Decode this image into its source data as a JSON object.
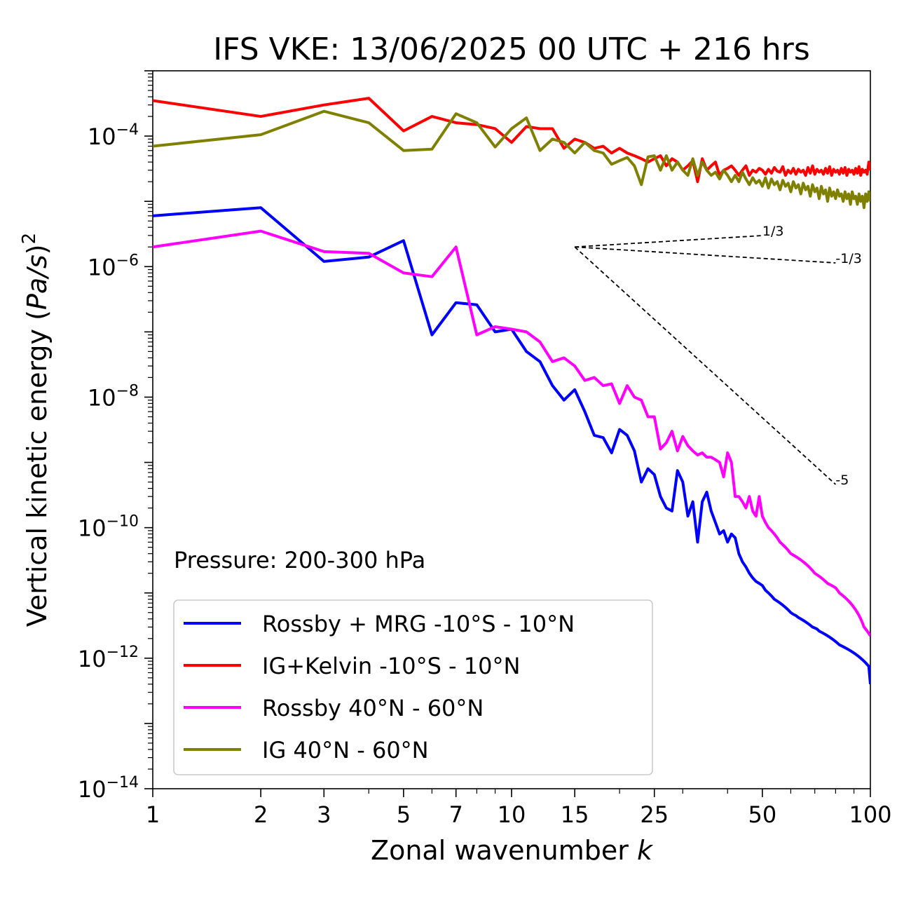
{
  "chart_data": {
    "type": "line",
    "title": "IFS VKE: 13/06/2025 00 UTC + 216 hrs",
    "xlabel_main": "Zonal wavenumber ",
    "xlabel_var": "k",
    "ylabel_main": "Vertical kinetic energy (",
    "ylabel_var": "Pa/s",
    "ylabel_close": ")",
    "ylabel_sup": "2",
    "x_scale": "log",
    "y_scale": "log",
    "xlim": [
      1,
      100
    ],
    "ylim": [
      1e-14,
      0.001
    ],
    "x_ticks": [
      {
        "value": 1,
        "label": "1"
      },
      {
        "value": 2,
        "label": "2"
      },
      {
        "value": 3,
        "label": "3"
      },
      {
        "value": 5,
        "label": "5"
      },
      {
        "value": 7,
        "label": "7"
      },
      {
        "value": 10,
        "label": "10"
      },
      {
        "value": 15,
        "label": "15"
      },
      {
        "value": 25,
        "label": "25"
      },
      {
        "value": 50,
        "label": "50"
      },
      {
        "value": 100,
        "label": "100"
      }
    ],
    "y_ticks": [
      {
        "value": 1e-14,
        "base": "10",
        "exp": "−14"
      },
      {
        "value": 1e-12,
        "base": "10",
        "exp": "−12"
      },
      {
        "value": 1e-10,
        "base": "10",
        "exp": "−10"
      },
      {
        "value": 1e-08,
        "base": "10",
        "exp": "−8"
      },
      {
        "value": 1e-06,
        "base": "10",
        "exp": "−6"
      },
      {
        "value": 0.0001,
        "base": "10",
        "exp": "−4"
      }
    ],
    "grid": false,
    "legend_position": "lower-left",
    "annotation": "Pressure: 200-300 hPa",
    "reference_slopes": [
      {
        "label": "1/3",
        "x0": 15,
        "y0": 2e-06,
        "x1": 50,
        "y1": 2.99e-06
      },
      {
        "label": "-1/3",
        "x0": 15,
        "y0": 2e-06,
        "x1": 80,
        "y1": 1.14e-06
      },
      {
        "label": "-5",
        "x0": 15,
        "y0": 2e-06,
        "x1": 80,
        "y1": 4.6e-10
      }
    ],
    "series": [
      {
        "name": "Rossby + MRG -10°S - 10°N",
        "color": "#0000ff",
        "x": [
          1,
          2,
          3,
          4,
          5,
          6,
          7,
          8,
          9,
          10,
          11,
          12,
          13,
          14,
          15,
          16,
          17,
          18,
          19,
          20,
          21,
          22,
          23,
          24,
          25,
          26,
          27,
          28,
          29,
          30,
          31,
          32,
          33,
          34,
          35,
          36,
          37,
          38,
          39,
          40,
          41,
          42,
          43,
          44,
          45,
          46,
          47,
          48,
          49,
          50,
          51,
          52,
          53,
          54,
          55,
          56,
          57,
          58,
          59,
          60,
          61,
          62,
          63,
          64,
          65,
          66,
          67,
          68,
          69,
          70,
          71,
          72,
          73,
          74,
          75,
          76,
          77,
          78,
          79,
          80,
          81,
          82,
          83,
          84,
          85,
          86,
          87,
          88,
          89,
          90,
          91,
          92,
          93,
          94,
          95,
          96,
          97,
          98,
          99,
          100
        ],
        "y": [
          6e-06,
          8e-06,
          1.2e-06,
          1.4e-06,
          2.5e-06,
          9e-08,
          2.8e-07,
          2.6e-07,
          1e-07,
          1.1e-07,
          5e-08,
          3.5e-08,
          1.5e-08,
          9e-09,
          1.3e-08,
          6e-09,
          2.6e-09,
          2.4e-09,
          1.4e-09,
          3.2e-09,
          2.6e-09,
          1.5e-09,
          5e-10,
          8e-10,
          6.5e-10,
          3e-10,
          2e-10,
          1.8e-10,
          7.5e-10,
          5e-10,
          1.5e-10,
          2.5e-10,
          6e-11,
          2.5e-10,
          3.5e-10,
          1.8e-10,
          1.2e-10,
          8e-11,
          9e-11,
          6e-11,
          8e-11,
          7e-11,
          4e-11,
          3e-11,
          2.5e-11,
          2e-11,
          1.7e-11,
          1.5e-11,
          1.4e-11,
          1.3e-11,
          1.1e-11,
          1e-11,
          9e-12,
          8e-12,
          7.5e-12,
          7e-12,
          6.5e-12,
          6e-12,
          5.5e-12,
          5e-12,
          4.7e-12,
          4.5e-12,
          4.2e-12,
          4e-12,
          3.8e-12,
          3.6e-12,
          3.4e-12,
          3.2e-12,
          3e-12,
          2.9e-12,
          2.8e-12,
          2.6e-12,
          2.5e-12,
          2.4e-12,
          2.3e-12,
          2.2e-12,
          2.1e-12,
          2e-12,
          1.9e-12,
          1.8e-12,
          1.7e-12,
          1.6e-12,
          1.55e-12,
          1.5e-12,
          1.45e-12,
          1.4e-12,
          1.35e-12,
          1.3e-12,
          1.25e-12,
          1.2e-12,
          1.15e-12,
          1.1e-12,
          1.05e-12,
          1e-12,
          9.5e-13,
          9e-13,
          8.5e-13,
          8e-13,
          7.5e-13,
          4e-13
        ]
      },
      {
        "name": "IG+Kelvin -10°S - 10°N",
        "color": "#ff0000",
        "x": [
          1,
          2,
          3,
          4,
          5,
          6,
          7,
          8,
          9,
          10,
          11,
          12,
          13,
          14,
          15,
          16,
          17,
          18,
          19,
          20,
          21,
          22,
          23,
          24,
          25,
          26,
          27,
          28,
          29,
          30,
          31,
          32,
          33,
          34,
          35,
          36,
          37,
          38,
          39,
          40,
          41,
          42,
          43,
          44,
          45,
          46,
          47,
          48,
          49,
          50,
          51,
          52,
          53,
          54,
          55,
          56,
          57,
          58,
          59,
          60,
          61,
          62,
          63,
          64,
          65,
          66,
          67,
          68,
          69,
          70,
          71,
          72,
          73,
          74,
          75,
          76,
          77,
          78,
          79,
          80,
          81,
          82,
          83,
          84,
          85,
          86,
          87,
          88,
          89,
          90,
          91,
          92,
          93,
          94,
          95,
          96,
          97,
          98,
          99,
          100
        ],
        "y": [
          0.00035,
          0.0002,
          0.0003,
          0.00038,
          0.00012,
          0.0002,
          0.00016,
          0.00015,
          0.00013,
          8e-05,
          0.00014,
          0.00013,
          0.00013,
          6.5e-05,
          9e-05,
          8e-05,
          6.5e-05,
          7e-05,
          5.5e-05,
          6.5e-05,
          5.5e-05,
          5e-05,
          4.5e-05,
          4e-05,
          4.5e-05,
          5e-05,
          3.5e-05,
          4.5e-05,
          4e-05,
          3e-05,
          3.5e-05,
          4.2e-05,
          2e-05,
          4.5e-05,
          3e-05,
          3.5e-05,
          4e-05,
          2.5e-05,
          3e-05,
          3.2e-05,
          3.5e-05,
          3e-05,
          2.5e-05,
          3e-05,
          3.5e-05,
          2.5e-05,
          3e-05,
          2.8e-05,
          3.2e-05,
          3e-05,
          2.6e-05,
          3.1e-05,
          2.7e-05,
          3.3e-05,
          2.9e-05,
          2.8e-05,
          3.4e-05,
          2.5e-05,
          3e-05,
          2.7e-05,
          3.2e-05,
          2.6e-05,
          3.1e-05,
          2.8e-05,
          3e-05,
          2.5e-05,
          3.3e-05,
          2.7e-05,
          3.5e-05,
          2.6e-05,
          3.1e-05,
          2.8e-05,
          3e-05,
          2.6e-05,
          3.2e-05,
          2.7e-05,
          3.4e-05,
          2.5e-05,
          3.1e-05,
          2.8e-05,
          3e-05,
          2.6e-05,
          3.2e-05,
          2.7e-05,
          3.3e-05,
          2.5e-05,
          3.1e-05,
          2.8e-05,
          3e-05,
          2.6e-05,
          3.2e-05,
          2.7e-05,
          3.4e-05,
          2.5e-05,
          3.1e-05,
          2.8e-05,
          3e-05,
          2.6e-05,
          4e-05,
          3e-05
        ]
      },
      {
        "name": "Rossby 40°N - 60°N",
        "color": "#ff00ff",
        "x": [
          1,
          2,
          3,
          4,
          5,
          6,
          7,
          8,
          9,
          10,
          11,
          12,
          13,
          14,
          15,
          16,
          17,
          18,
          19,
          20,
          21,
          22,
          23,
          24,
          25,
          26,
          27,
          28,
          29,
          30,
          31,
          32,
          33,
          34,
          35,
          36,
          37,
          38,
          39,
          40,
          41,
          42,
          43,
          44,
          45,
          46,
          47,
          48,
          49,
          50,
          51,
          52,
          53,
          54,
          55,
          56,
          57,
          58,
          59,
          60,
          61,
          62,
          63,
          64,
          65,
          66,
          67,
          68,
          69,
          70,
          71,
          72,
          73,
          74,
          75,
          76,
          77,
          78,
          79,
          80,
          81,
          82,
          83,
          84,
          85,
          86,
          87,
          88,
          89,
          90,
          91,
          92,
          93,
          94,
          95,
          96,
          97,
          98,
          99,
          100
        ],
        "y": [
          2e-06,
          3.5e-06,
          1.7e-06,
          1.6e-06,
          8e-07,
          7e-07,
          2e-06,
          9e-08,
          1.2e-07,
          1.1e-07,
          1e-07,
          7e-08,
          3.5e-08,
          4e-08,
          3e-08,
          1.8e-08,
          2e-08,
          1.5e-08,
          1.6e-08,
          8e-09,
          1.5e-08,
          1e-08,
          9e-09,
          5e-09,
          5e-09,
          1.6e-09,
          2e-09,
          3e-09,
          1.5e-09,
          2.5e-09,
          1.8e-09,
          1.5e-09,
          1.3e-09,
          1.4e-09,
          1.2e-09,
          1.2e-09,
          1.1e-09,
          1e-09,
          6e-10,
          1.4e-09,
          1e-09,
          3e-10,
          3e-10,
          2.5e-10,
          2e-10,
          3e-10,
          1.8e-10,
          1.5e-10,
          3e-10,
          1.5e-10,
          1.2e-10,
          1e-10,
          9e-11,
          8e-11,
          7e-11,
          6e-11,
          5.5e-11,
          5e-11,
          4.5e-11,
          4e-11,
          3.8e-11,
          3.6e-11,
          3.4e-11,
          3.2e-11,
          3e-11,
          2.8e-11,
          2.6e-11,
          2.4e-11,
          2.2e-11,
          2e-11,
          1.9e-11,
          1.8e-11,
          1.7e-11,
          1.6e-11,
          1.5e-11,
          1.4e-11,
          1.35e-11,
          1.3e-11,
          1.25e-11,
          1.2e-11,
          1.1e-11,
          1e-11,
          9.5e-12,
          9e-12,
          8.5e-12,
          8e-12,
          7.5e-12,
          7e-12,
          6.5e-12,
          6e-12,
          5.5e-12,
          5e-12,
          4.5e-12,
          4e-12,
          3.5e-12,
          3e-12,
          2.8e-12,
          2.6e-12,
          2.4e-12,
          2.2e-12
        ]
      },
      {
        "name": "IG 40°N - 60°N",
        "color": "#808000",
        "x": [
          1,
          2,
          3,
          4,
          5,
          6,
          7,
          8,
          9,
          10,
          11,
          12,
          13,
          14,
          15,
          16,
          17,
          18,
          19,
          20,
          21,
          22,
          23,
          24,
          25,
          26,
          27,
          28,
          29,
          30,
          31,
          32,
          33,
          34,
          35,
          36,
          37,
          38,
          39,
          40,
          41,
          42,
          43,
          44,
          45,
          46,
          47,
          48,
          49,
          50,
          51,
          52,
          53,
          54,
          55,
          56,
          57,
          58,
          59,
          60,
          61,
          62,
          63,
          64,
          65,
          66,
          67,
          68,
          69,
          70,
          71,
          72,
          73,
          74,
          75,
          76,
          77,
          78,
          79,
          80,
          81,
          82,
          83,
          84,
          85,
          86,
          87,
          88,
          89,
          90,
          91,
          92,
          93,
          94,
          95,
          96,
          97,
          98,
          99,
          100
        ],
        "y": [
          7e-05,
          0.000105,
          0.00024,
          0.00016,
          6e-05,
          6.3e-05,
          0.00022,
          0.00016,
          6.8e-05,
          0.00013,
          0.00019,
          6e-05,
          9e-05,
          8e-05,
          5.5e-05,
          8e-05,
          6e-05,
          5.5e-05,
          3.7e-05,
          4.2e-05,
          4.7e-05,
          3.5e-05,
          1.8e-05,
          4.8e-05,
          5e-05,
          3e-05,
          5e-05,
          3e-05,
          4e-05,
          3e-05,
          2.5e-05,
          4.5e-05,
          2.5e-05,
          4e-05,
          3e-05,
          2.5e-05,
          2.8e-05,
          2.2e-05,
          3e-05,
          2.5e-05,
          2e-05,
          2.5e-05,
          2e-05,
          2.8e-05,
          2.2e-05,
          1.8e-05,
          2.3e-05,
          1.9e-05,
          2.1e-05,
          1.7e-05,
          2.3e-05,
          1.6e-05,
          2.2e-05,
          1.8e-05,
          2e-05,
          1.5e-05,
          2.1e-05,
          1.7e-05,
          1.9e-05,
          1.4e-05,
          2e-05,
          1.6e-05,
          1.8e-05,
          1.3e-05,
          1.9e-05,
          1.5e-05,
          1.7e-05,
          1.2e-05,
          1.8e-05,
          1.4e-05,
          1.6e-05,
          1.1e-05,
          1.7e-05,
          1.3e-05,
          1.5e-05,
          1e-05,
          1.6e-05,
          1.2e-05,
          1.4e-05,
          1.1e-05,
          1.5e-05,
          1.2e-05,
          1.3e-05,
          1e-05,
          1.4e-05,
          1.1e-05,
          1.3e-05,
          9e-06,
          1.4e-05,
          1.1e-05,
          1.2e-05,
          9e-06,
          1.3e-05,
          1e-05,
          1.2e-05,
          8e-06,
          1.3e-05,
          1e-05,
          1.4e-05,
          1e-05
        ]
      }
    ]
  }
}
